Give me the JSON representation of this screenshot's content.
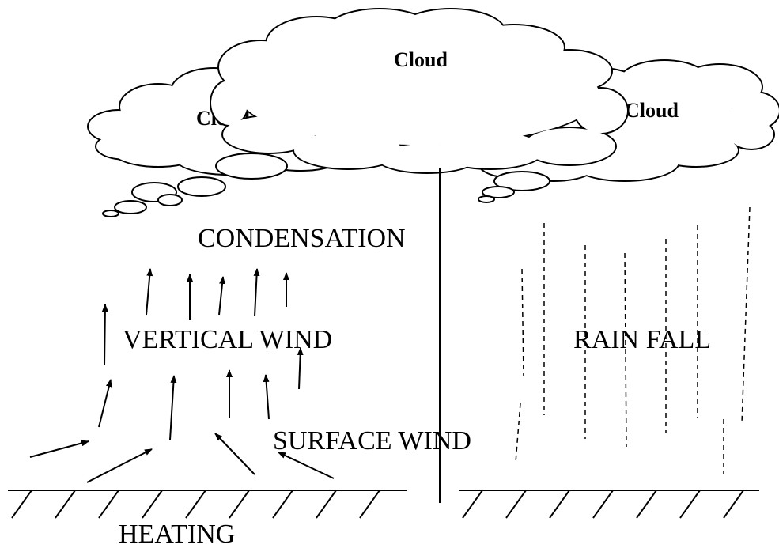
{
  "clouds": [
    {
      "label": "Cloud"
    },
    {
      "label": "Cloud"
    },
    {
      "label": "Cloud"
    }
  ],
  "labels": {
    "condensation": "CONDENSATION",
    "vertical_wind": "VERTICAL WIND",
    "rain_fall": "RAIN FALL",
    "surface_wind": "SURFACE WIND",
    "heating": "HEATING"
  }
}
